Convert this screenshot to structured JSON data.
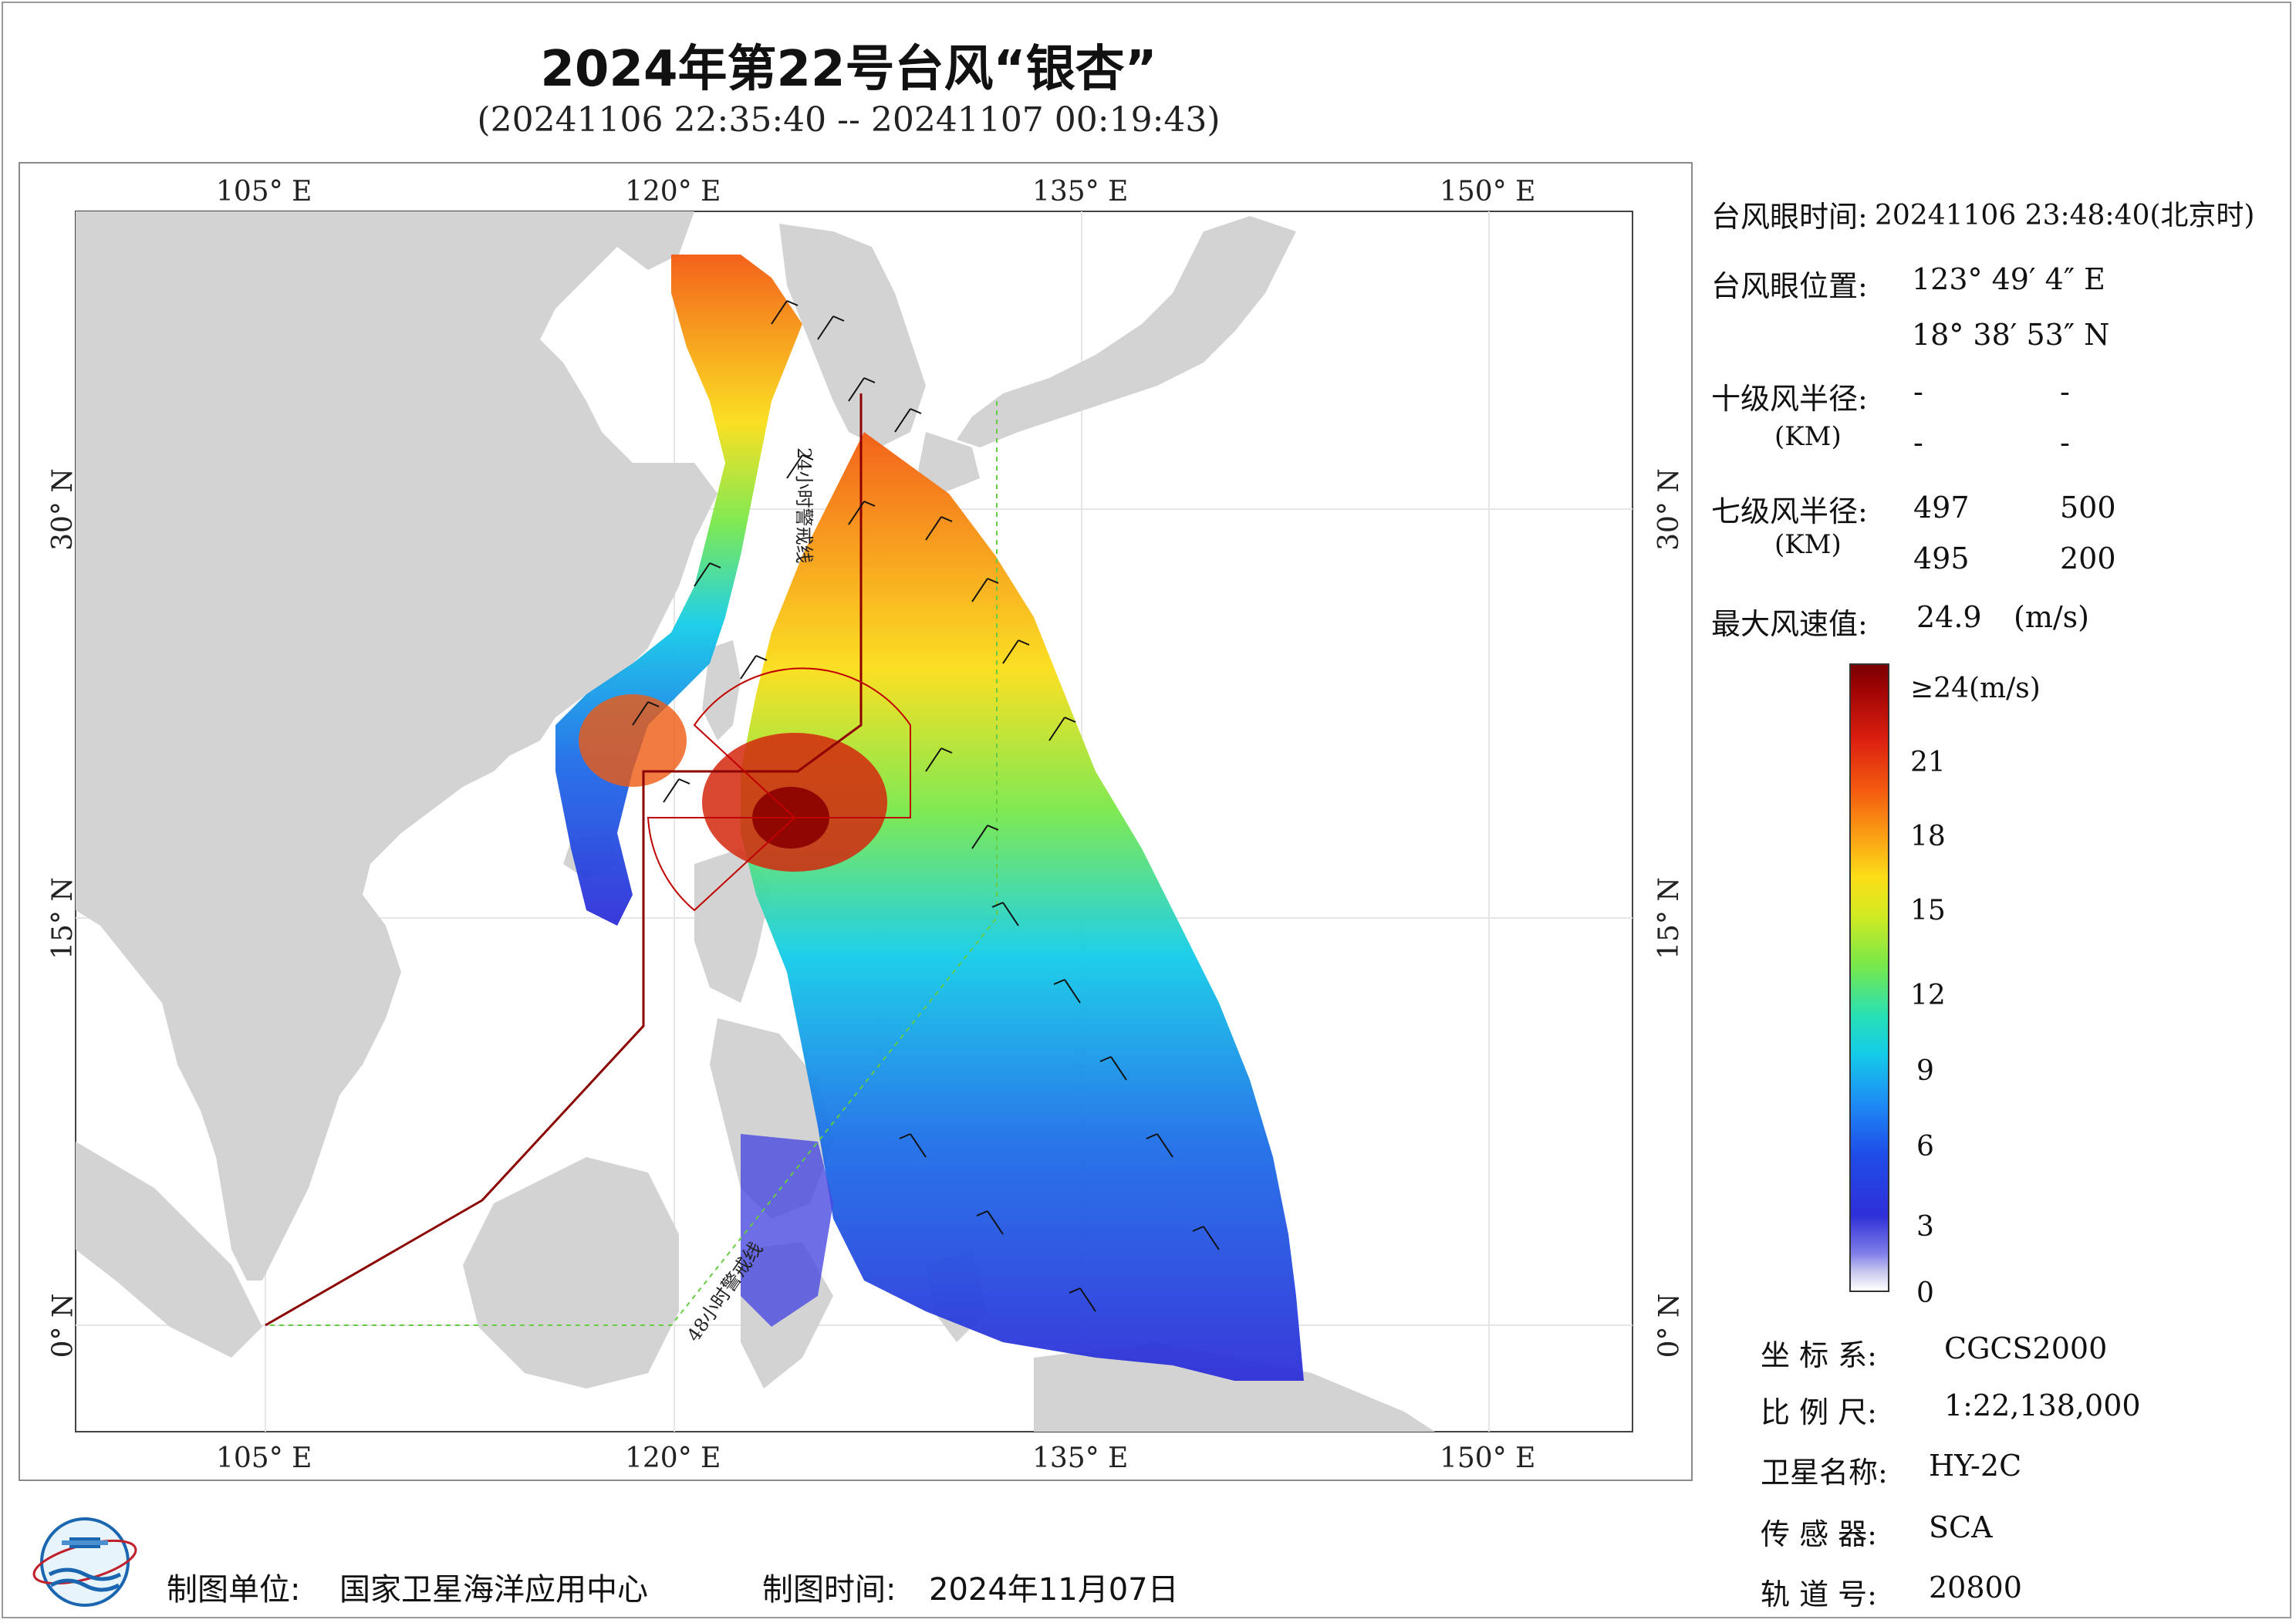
{
  "title": "2024年第22号台风“银杏”",
  "subtitle": "(20241106 22:35:40 -- 20241107 00:19:43)",
  "axes": {
    "top": [
      "105° E",
      "120° E",
      "135° E",
      "150° E"
    ],
    "bottom": [
      "105° E",
      "120° E",
      "135° E",
      "150° E"
    ],
    "left": [
      "30° N",
      "15° N",
      "0° N"
    ],
    "right": [
      "30° N",
      "15° N",
      "0° N"
    ]
  },
  "map_labels": {
    "warning_24h": "24小时警戒线",
    "warning_48h": "48小时警戒线"
  },
  "info": {
    "eye_time_label": "台风眼时间:",
    "eye_time_value": "20241106 23:48:40(北京时)",
    "eye_pos_label": "台风眼位置:",
    "eye_lon": "123° 49′ 4″ E",
    "eye_lat": "18° 38′ 53″ N",
    "r10_label": "十级风半径:",
    "r10_unit": "(KM)",
    "r10_values": [
      "-",
      "-",
      "-",
      "-"
    ],
    "r7_label": "七级风半径:",
    "r7_unit": "(KM)",
    "r7_values": [
      "497",
      "500",
      "495",
      "200"
    ],
    "max_wind_label": "最大风速值:",
    "max_wind_value": "24.9",
    "max_wind_unit": "(m/s)"
  },
  "legend": {
    "ticks": [
      "≥24(m/s)",
      "21",
      "18",
      "15",
      "12",
      "9",
      "6",
      "3",
      "0"
    ]
  },
  "meta": {
    "crs_label": "坐 标 系:",
    "crs_value": "CGCS2000",
    "scale_label": "比 例 尺:",
    "scale_value": "1:22,138,000",
    "sat_label": "卫星名称:",
    "sat_value": "HY-2C",
    "sensor_label": "传 感 器:",
    "sensor_value": "SCA",
    "orbit_label": "轨 道 号:",
    "orbit_value": "20800"
  },
  "footer": {
    "org_label": "制图单位:",
    "org_value": "国家卫星海洋应用中心",
    "date_label": "制图时间:",
    "date_value": "2024年11月07日"
  },
  "colors": {
    "land": "#d3d3d3",
    "warning_line_24h": "#8b0000",
    "warning_line_48h": "#66cc44",
    "wind_max": "#7a0000",
    "wind_min": "#ffffff"
  },
  "icons": [
    "logo-emblem"
  ]
}
